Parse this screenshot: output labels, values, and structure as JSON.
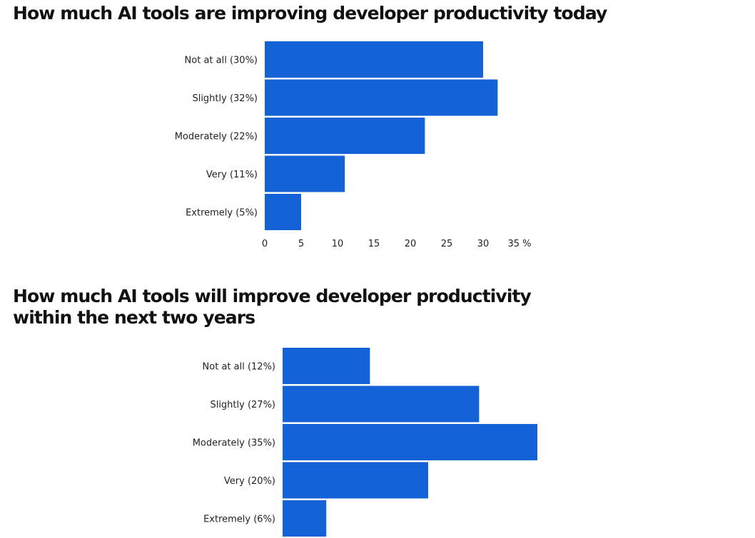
{
  "colors": {
    "bar": "#1463d6",
    "text": "#111111",
    "background": "#ffffff"
  },
  "chart_data": [
    {
      "type": "bar",
      "orientation": "horizontal",
      "title": "How much AI tools are improving developer productivity today",
      "categories": [
        "Not at all (30%)",
        "Slightly (32%)",
        "Moderately (22%)",
        "Very (11%)",
        "Extremely (5%)"
      ],
      "values": [
        30,
        32,
        22,
        11,
        5
      ],
      "xlim": [
        0,
        35
      ],
      "xticks": [
        0,
        5,
        10,
        15,
        20,
        25,
        30,
        35
      ],
      "xtick_labels": [
        "0",
        "5",
        "10",
        "15",
        "20",
        "25",
        "30",
        "35 %"
      ],
      "xlabel": "",
      "ylabel": "",
      "grid": false
    },
    {
      "type": "bar",
      "orientation": "horizontal",
      "title": "How much AI tools will improve developer productivity within the next two years",
      "title_lines": [
        "How much AI tools will improve developer productivity",
        "within the next two years"
      ],
      "categories": [
        "Not at all (12%)",
        "Slightly (27%)",
        "Moderately (35%)",
        "Very (20%)",
        "Extremely (6%)"
      ],
      "values": [
        12,
        27,
        35,
        20,
        6
      ],
      "xlim": [
        0,
        35
      ],
      "xlabel": "",
      "ylabel": "",
      "grid": false
    }
  ]
}
